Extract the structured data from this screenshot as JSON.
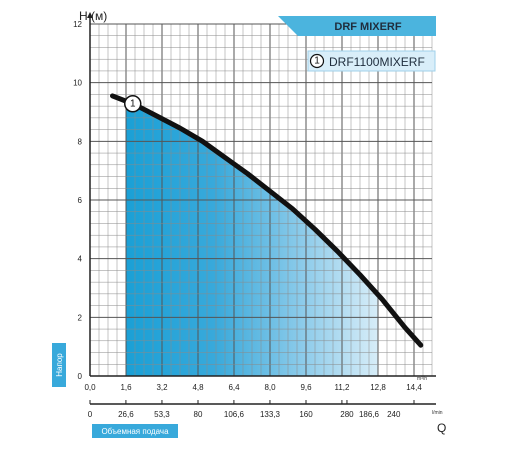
{
  "chart_data": {
    "type": "line",
    "title": "DRF MIXERF",
    "ylabel": "H (м)",
    "y_tag": "Напор",
    "xlabel": "Q",
    "x_tag": "Объемная подача",
    "x_unit_top": "m³/h",
    "x_unit_bottom": "l/min",
    "ylim": [
      0,
      12
    ],
    "xlim": [
      0,
      15.2
    ],
    "y_ticks": [
      "0",
      "2",
      "4",
      "6",
      "8",
      "10",
      "12"
    ],
    "x_ticks_m3h": [
      "0,0",
      "1,6",
      "3,2",
      "4,8",
      "6,4",
      "8,0",
      "9,6",
      "11,2",
      "12,8",
      "14,4"
    ],
    "x_ticks_lmin": [
      "0",
      "26,6",
      "53,3",
      "80",
      "106,6",
      "133,3",
      "160",
      "186,6",
      "240"
    ],
    "x_ticks_lmin_extra": "280",
    "series": [
      {
        "name": "DRF1100MIXERF",
        "marker": "1",
        "x": [
          1.0,
          2.0,
          3.0,
          4.0,
          5.0,
          6.0,
          7.0,
          8.0,
          9.0,
          10.0,
          11.0,
          12.0,
          13.0,
          14.0,
          14.7
        ],
        "y": [
          9.55,
          9.25,
          8.85,
          8.45,
          8.0,
          7.45,
          6.9,
          6.3,
          5.7,
          5.0,
          4.25,
          3.45,
          2.6,
          1.65,
          1.05
        ]
      }
    ],
    "operating_range": [
      1.6,
      12.8
    ],
    "grid": true,
    "legend_position": "top-right"
  }
}
